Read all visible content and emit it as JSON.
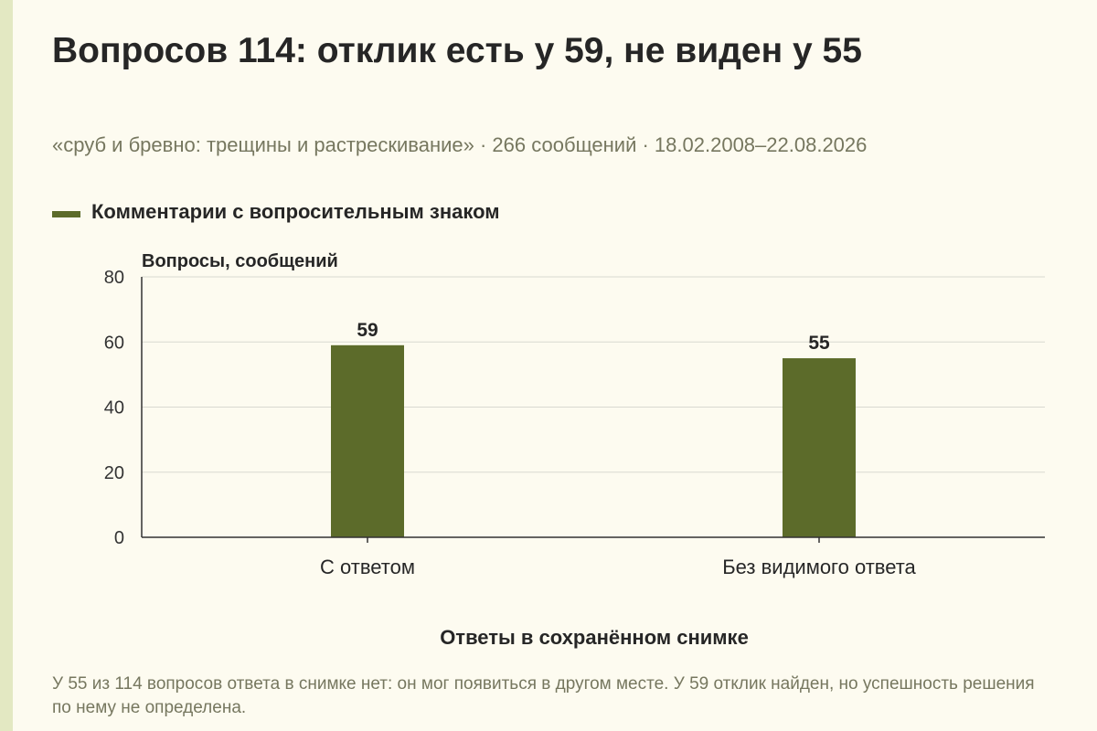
{
  "title": "Вопросов 114: отклик есть у 59, не виден у 55",
  "subtitle": "«сруб и бревно: трещины и растрескивание» · 266 сообщений · 18.02.2008–22.08.2026",
  "note": "У 55 из 114 вопросов ответа в снимке нет: он мог появиться в другом месте. У 59 отклик найден, но успешность решения по нему не определена.",
  "colors": {
    "bar": "#5c6b2a",
    "grid": "#d9d9d0",
    "axis": "#333333"
  },
  "chart_data": {
    "type": "bar",
    "categories": [
      "С ответом",
      "Без видимого ответа"
    ],
    "series": [
      {
        "name": "Комментарии с вопросительным знаком",
        "values": [
          59,
          55
        ]
      }
    ],
    "data_labels": [
      "59",
      "55"
    ],
    "ylabel": "Вопросы, сообщений",
    "xlabel": "Ответы в сохранённом снимке",
    "ylim": [
      0,
      80
    ],
    "yticks": [
      0,
      20,
      40,
      60,
      80
    ],
    "grid": true,
    "legend_position": "top-left"
  }
}
